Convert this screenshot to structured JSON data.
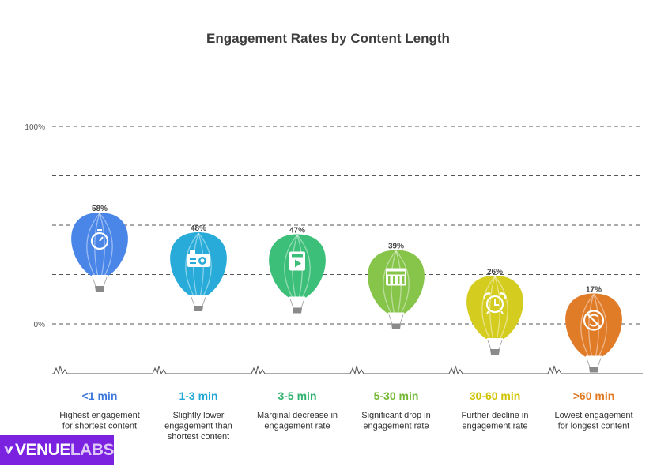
{
  "chart_data": {
    "type": "bar",
    "title": "Engagement Rates by Content Length",
    "categories": [
      "<1 min",
      "1-3 min",
      "3-5 min",
      "5-30 min",
      "30-60 min",
      ">60 min"
    ],
    "values": [
      58,
      48,
      47,
      39,
      26,
      17
    ],
    "value_labels": [
      "58%",
      "48%",
      "47%",
      "39%",
      "26%",
      "17%"
    ],
    "descriptions": [
      [
        "Highest engagement",
        "for shortest content"
      ],
      [
        "Slightly lower",
        "engagement than",
        "shortest content"
      ],
      [
        "Marginal decrease in",
        "engagement rate"
      ],
      [
        "Significant drop in",
        "engagement rate"
      ],
      [
        "Further decline in",
        "engagement rate"
      ],
      [
        "Lowest engagement",
        "for longest content"
      ]
    ],
    "colors": [
      "#4a86e8",
      "#28abd9",
      "#3cbf79",
      "#86c44a",
      "#d4cc1e",
      "#e07b28"
    ],
    "label_colors": [
      "#3d78dc",
      "#1fa8d6",
      "#2fb36e",
      "#74b833",
      "#cfc300",
      "#e27b24"
    ],
    "icons": [
      "stopwatch-icon",
      "camera-icon",
      "video-file-icon",
      "film-strip-icon",
      "alarm-clock-icon",
      "no-time-icon"
    ],
    "yticks": [
      {
        "value": 100,
        "label": "100%"
      },
      {
        "value": 0,
        "label": "0%"
      }
    ],
    "ylim": [
      0,
      100
    ],
    "xlabel": "",
    "ylabel": ""
  },
  "brand": {
    "name_part1": "VENUE",
    "name_part2": "LABS",
    "color": "#7a22e0"
  }
}
